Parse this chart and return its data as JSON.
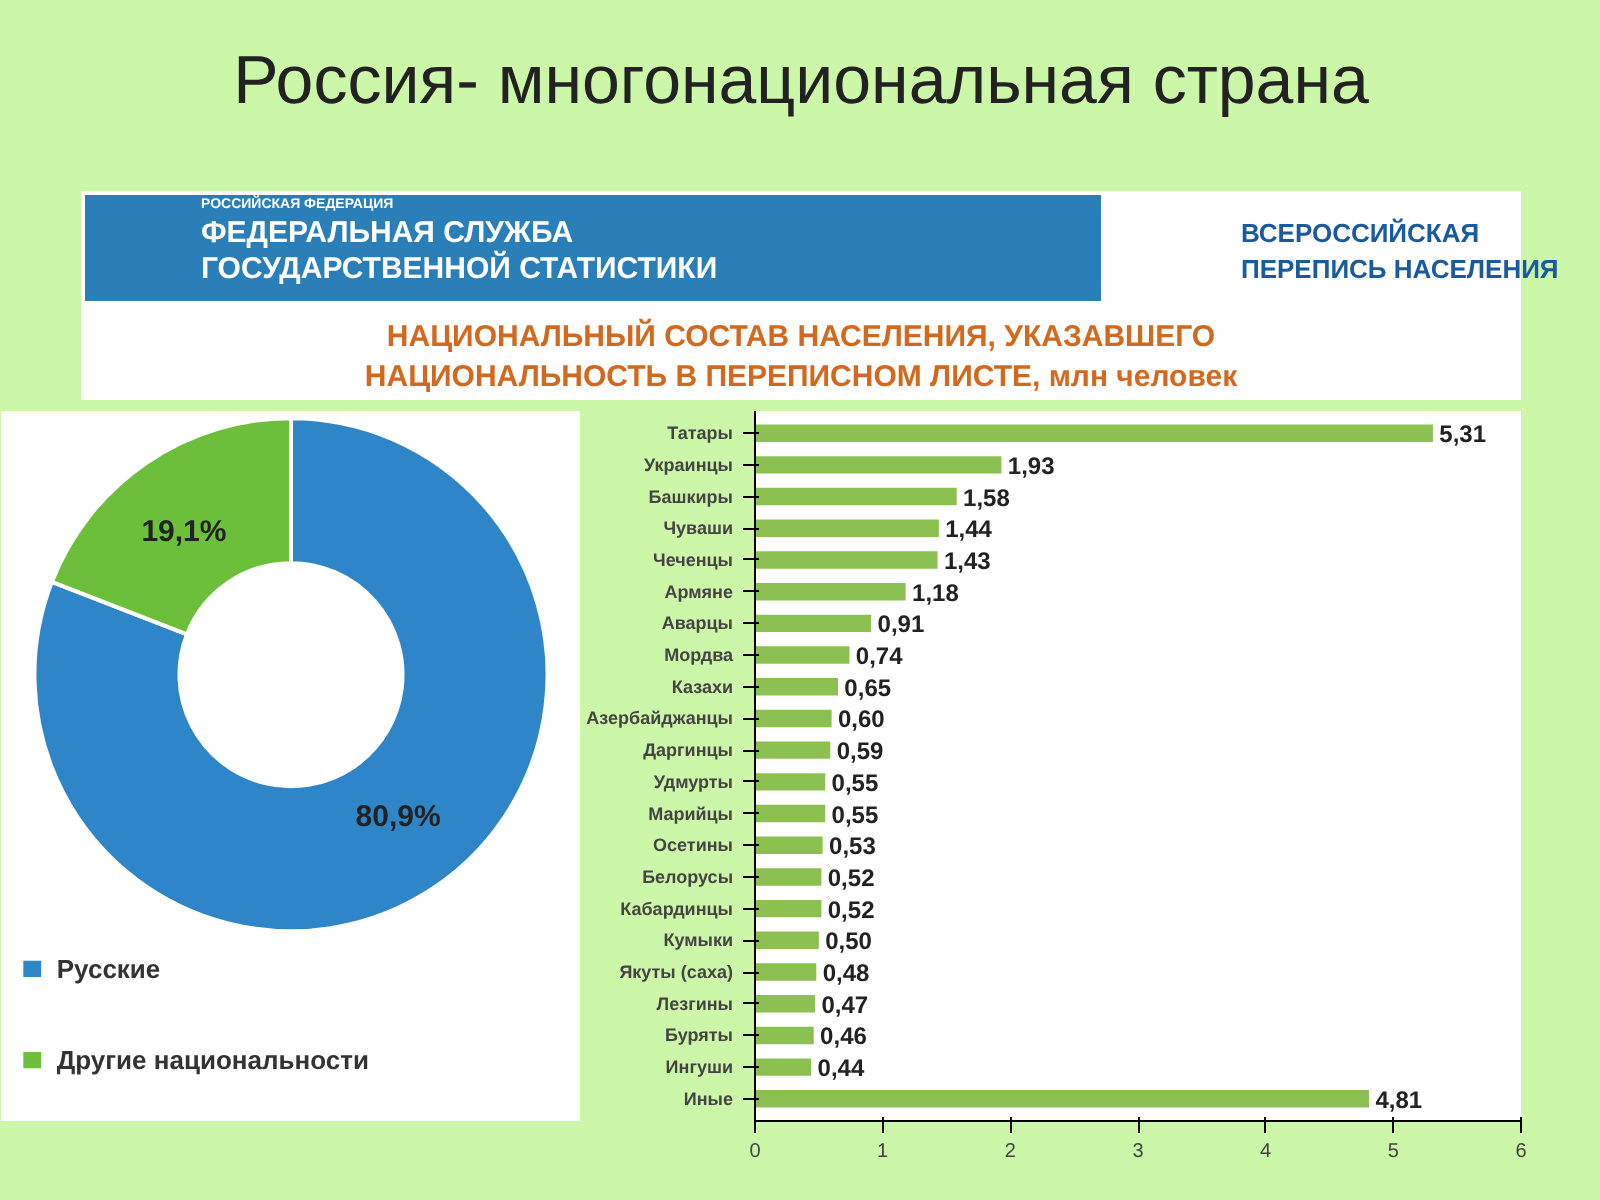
{
  "chart_data": [
    {
      "type": "donut",
      "title": "Россия- многонациональная страна",
      "subtitle": "НАЦИОНАЛЬНЫЙ СОСТАВ НАСЕЛЕНИЯ, УКАЗАВШЕГО НАЦИОНАЛЬНОСТЬ В ПЕРЕПИСНОМ ЛИСТЕ, млн человек",
      "annotations": [
        "РОССИЙСКАЯ ФЕДЕРАЦИЯ",
        "ФЕДЕРАЛЬНАЯ СЛУЖБА ГОСУДАРСТВЕННОЙ СТАТИСТИКИ",
        "ВСЕРОССИЙСКАЯ ПЕРЕПИСЬ НАСЕЛЕНИЯ"
      ],
      "categories": [
        "Русские",
        "Другие национальности"
      ],
      "values": [
        80.9,
        19.1
      ],
      "colors": [
        "#2e86c8",
        "#6cbf3a"
      ],
      "value_labels": [
        "80,9%",
        "19,1%"
      ],
      "legend": "bottom"
    },
    {
      "type": "bar",
      "orientation": "horizontal",
      "categories": [
        "Татары",
        "Украинцы",
        "Башкиры",
        "Чуваши",
        "Чеченцы",
        "Армяне",
        "Аварцы",
        "Мордва",
        "Казахи",
        "Азербайджанцы",
        "Даргинцы",
        "Удмурты",
        "Марийцы",
        "Осетины",
        "Белорусы",
        "Кабардинцы",
        "Кумыки",
        "Якуты (саха)",
        "Лезгины",
        "Буряты",
        "Ингуши",
        "Иные"
      ],
      "values": [
        5.31,
        1.93,
        1.58,
        1.44,
        1.43,
        1.18,
        0.91,
        0.74,
        0.65,
        0.6,
        0.59,
        0.55,
        0.55,
        0.53,
        0.52,
        0.52,
        0.5,
        0.48,
        0.47,
        0.46,
        0.44,
        4.81
      ],
      "value_labels": [
        "5,31",
        "1,93",
        "1,58",
        "1,44",
        "1,43",
        "1,18",
        "0,91",
        "0,74",
        "0,65",
        "0,60",
        "0,59",
        "0,55",
        "0,55",
        "0,53",
        "0,52",
        "0,52",
        "0,50",
        "0,48",
        "0,47",
        "0,46",
        "0,44",
        "4,81"
      ],
      "color": "#8cc152",
      "xlim": [
        0,
        6
      ],
      "xticks": [
        0,
        1,
        2,
        3,
        4,
        5,
        6
      ],
      "grid": false
    }
  ]
}
